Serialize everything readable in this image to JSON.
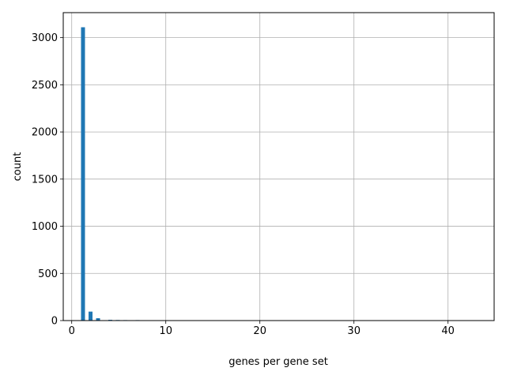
{
  "chart_data": {
    "type": "bar",
    "title": "",
    "xlabel": "genes per gene set",
    "ylabel": "count",
    "xlim": [
      -0.9,
      44.9
    ],
    "ylim": [
      0,
      3265
    ],
    "xticks": [
      0,
      10,
      20,
      30,
      40
    ],
    "yticks": [
      0,
      500,
      1000,
      1500,
      2000,
      2500,
      3000
    ],
    "grid": true,
    "bar_color": "#1f77b4",
    "bar_width": 0.42,
    "bars": [
      {
        "x": 1.2,
        "value": 3110
      },
      {
        "x": 2.0,
        "value": 95
      },
      {
        "x": 2.8,
        "value": 25
      },
      {
        "x": 4.1,
        "value": 8
      },
      {
        "x": 4.9,
        "value": 6
      },
      {
        "x": 5.7,
        "value": 5
      },
      {
        "x": 7.0,
        "value": 5
      },
      {
        "x": 7.8,
        "value": 4
      },
      {
        "x": 9.1,
        "value": 4
      },
      {
        "x": 12.9,
        "value": 3
      },
      {
        "x": 25.2,
        "value": 3
      },
      {
        "x": 41.1,
        "value": 3
      },
      {
        "x": 42.8,
        "value": 3
      }
    ]
  }
}
